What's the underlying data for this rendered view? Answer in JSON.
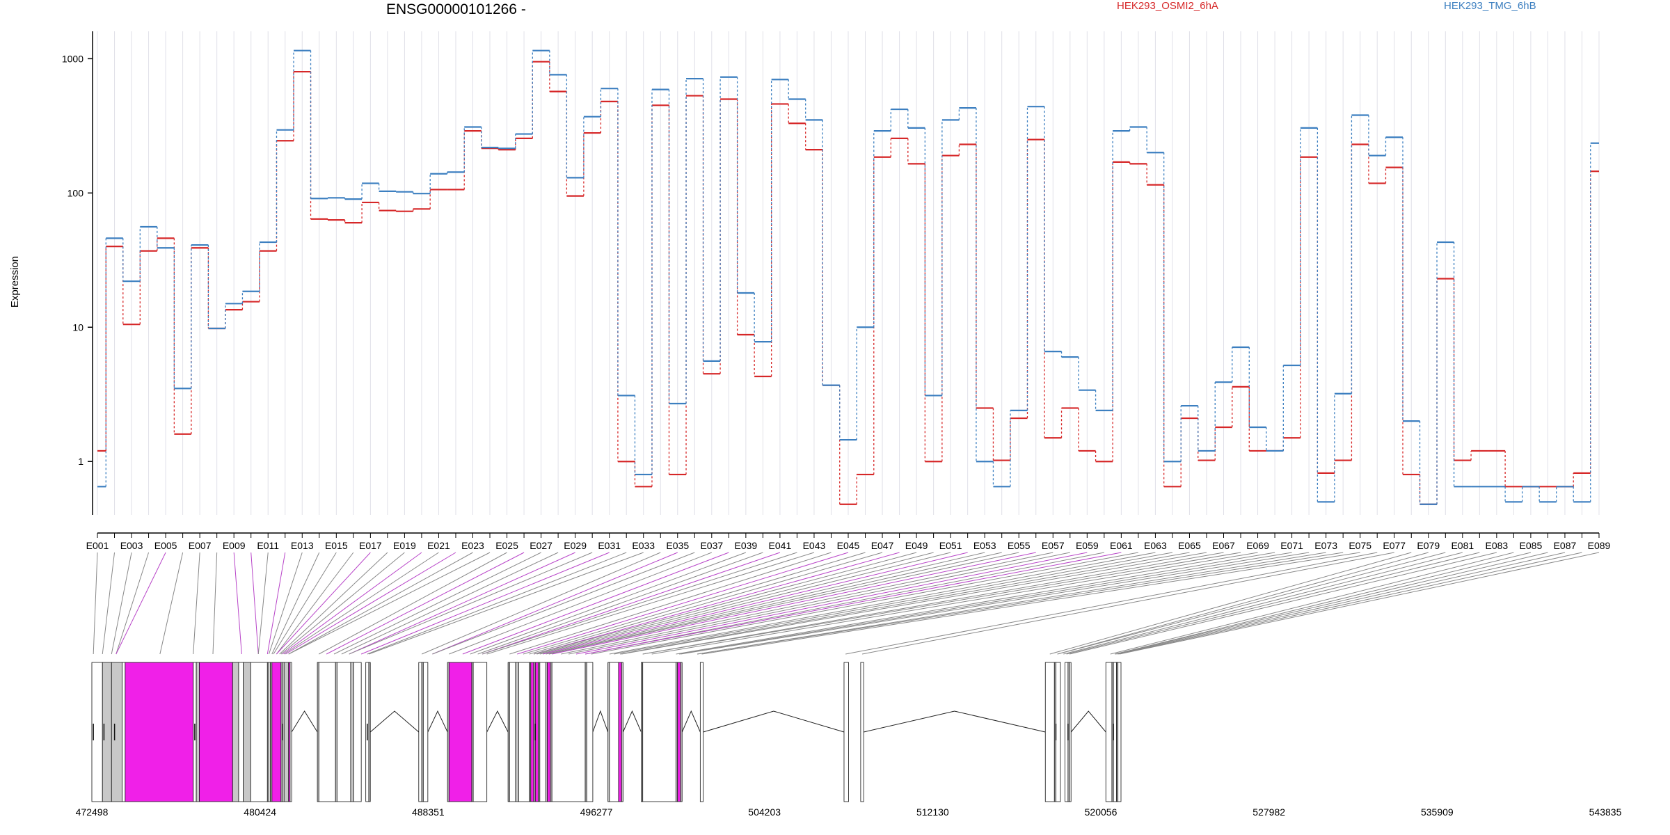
{
  "chart_data": {
    "type": "line",
    "title": "ENSG00000101266 -",
    "ylabel": "Expression",
    "xlabel": "",
    "y_scale": "log",
    "ylim": [
      0.4,
      1600
    ],
    "y_ticks": [
      1,
      10,
      100,
      1000
    ],
    "y_tick_labels": [
      "1",
      "10",
      "100",
      "1000"
    ],
    "x_tick_labels": [
      "E001",
      "E003",
      "E005",
      "E007",
      "E009",
      "E011",
      "E013",
      "E015",
      "E017",
      "E019",
      "E021",
      "E023",
      "E025",
      "E027",
      "E029",
      "E031",
      "E033",
      "E035",
      "E037",
      "E039",
      "E041",
      "E043",
      "E045",
      "E047",
      "E049",
      "E051",
      "E053",
      "E055",
      "E057",
      "E059",
      "E061",
      "E063",
      "E065",
      "E067",
      "E069",
      "E071",
      "E073",
      "E075",
      "E077",
      "E079",
      "E081",
      "E083",
      "E085",
      "E087",
      "E089"
    ],
    "legend_placement": "top",
    "categories": [
      "E001",
      "E002",
      "E003",
      "E004",
      "E005",
      "E006",
      "E007",
      "E008",
      "E009",
      "E010",
      "E011",
      "E012",
      "E013",
      "E014",
      "E015",
      "E016",
      "E017",
      "E018",
      "E019",
      "E020",
      "E021",
      "E022",
      "E023",
      "E024",
      "E025",
      "E026",
      "E027",
      "E028",
      "E029",
      "E030",
      "E031",
      "E032",
      "E033",
      "E034",
      "E035",
      "E036",
      "E037",
      "E038",
      "E039",
      "E040",
      "E041",
      "E042",
      "E043",
      "E044",
      "E045",
      "E046",
      "E047",
      "E048",
      "E049",
      "E050",
      "E051",
      "E052",
      "E053",
      "E054",
      "E055",
      "E056",
      "E057",
      "E058",
      "E059",
      "E060",
      "E061",
      "E062",
      "E063",
      "E064",
      "E065",
      "E066",
      "E067",
      "E068",
      "E069",
      "E070",
      "E071",
      "E072",
      "E073",
      "E074",
      "E075",
      "E076",
      "E077",
      "E078",
      "E079",
      "E080",
      "E081",
      "E082",
      "E083",
      "E084",
      "E085",
      "E086",
      "E087",
      "E088",
      "E089"
    ],
    "series": [
      {
        "name": "HEK293_OSMI2_6hA",
        "color": "#d62728",
        "values": [
          1.2,
          40,
          10.5,
          37,
          46,
          1.6,
          39,
          9.8,
          13.5,
          15.5,
          37,
          245,
          800,
          64,
          63,
          60,
          85,
          74,
          73,
          76,
          106,
          106,
          290,
          215,
          210,
          255,
          950,
          570,
          95,
          280,
          480,
          1.0,
          0.65,
          450,
          0.8,
          530,
          4.5,
          500,
          8.8,
          4.3,
          460,
          330,
          210,
          3.7,
          0.48,
          0.8,
          185,
          255,
          165,
          1.0,
          190,
          230,
          2.5,
          1.02,
          2.1,
          250,
          1.5,
          2.5,
          1.2,
          1.0,
          170,
          165,
          115,
          0.65,
          2.1,
          1.02,
          1.8,
          3.6,
          1.2,
          1.2,
          1.5,
          185,
          0.82,
          1.02,
          230,
          118,
          155,
          0.8,
          0.48,
          23,
          1.02,
          1.2,
          1.2,
          0.65,
          0.65,
          0.65,
          0.65,
          0.82,
          145
        ]
      },
      {
        "name": "HEK293_TMG_6hB",
        "color": "#3c7fc0",
        "values": [
          0.65,
          46,
          22,
          56,
          39,
          3.5,
          41,
          9.8,
          15,
          18.5,
          43,
          295,
          1150,
          91,
          92,
          90,
          118,
          103,
          102,
          99,
          139,
          143,
          310,
          218,
          215,
          275,
          1150,
          760,
          130,
          370,
          600,
          3.1,
          0.8,
          590,
          2.7,
          710,
          5.6,
          730,
          18,
          7.8,
          700,
          500,
          350,
          3.7,
          1.45,
          10,
          290,
          420,
          305,
          3.1,
          350,
          430,
          1.0,
          0.65,
          2.4,
          440,
          6.6,
          6.0,
          3.4,
          2.4,
          290,
          310,
          200,
          1.0,
          2.6,
          1.2,
          3.9,
          7.1,
          1.8,
          1.2,
          5.2,
          305,
          0.5,
          3.2,
          380,
          190,
          260,
          2.0,
          0.48,
          43,
          0.65,
          0.65,
          0.65,
          0.5,
          0.65,
          0.5,
          0.65,
          0.5,
          235
        ]
      }
    ],
    "gene_model": {
      "axis_ticks": [
        "472498",
        "480424",
        "488351",
        "496277",
        "504203",
        "512130",
        "520056",
        "527982",
        "535909",
        "543835"
      ],
      "axis_values": [
        472498,
        480424,
        488351,
        496277,
        504203,
        512130,
        520056,
        527982,
        535909,
        543835
      ],
      "highlight_color": "#f020e8",
      "exon_color": "#c8c8c8"
    }
  }
}
